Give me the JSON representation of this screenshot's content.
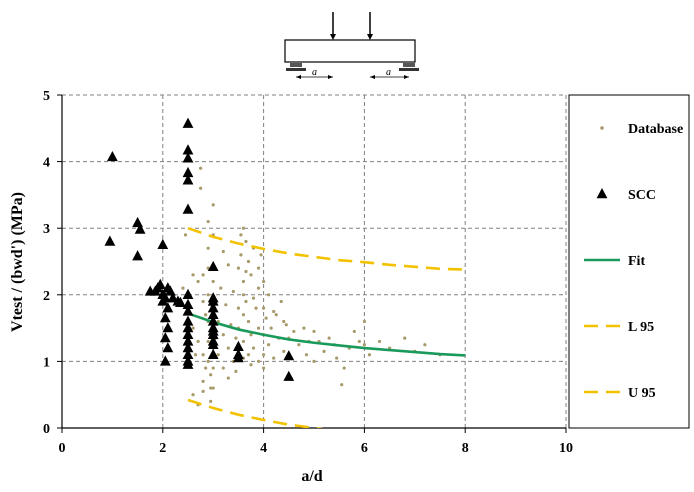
{
  "chart_data": {
    "type": "scatter",
    "xlabel": "a/d",
    "ylabel": "Vtest / (bwd')   (MPa)",
    "xlim": [
      0,
      10
    ],
    "ylim": [
      0,
      5
    ],
    "x_ticks": [
      "0",
      "2",
      "4",
      "6",
      "8",
      "10"
    ],
    "y_ticks": [
      "0",
      "1",
      "2",
      "3",
      "4",
      "5"
    ],
    "grid": true,
    "legend_position": "right",
    "legend": [
      "Database",
      "SCC",
      "Fit",
      "L 95",
      "U 95"
    ],
    "inset_diagram": {
      "span_label_left": "a",
      "span_label_right": "a"
    },
    "colors": {
      "database": "#a89a6a",
      "scc": "#000000",
      "fit": "#1a9a5a",
      "bounds": "#f2c200",
      "grid": "#808080"
    },
    "series": [
      {
        "name": "SCC",
        "marker": "triangle",
        "points": [
          [
            1.0,
            4.07
          ],
          [
            0.95,
            2.8
          ],
          [
            1.5,
            3.08
          ],
          [
            1.55,
            2.98
          ],
          [
            1.5,
            2.58
          ],
          [
            2.0,
            2.75
          ],
          [
            1.75,
            2.05
          ],
          [
            1.85,
            2.05
          ],
          [
            1.9,
            2.1
          ],
          [
            1.95,
            2.15
          ],
          [
            2.0,
            2.0
          ],
          [
            2.05,
            1.95
          ],
          [
            2.1,
            2.1
          ],
          [
            2.15,
            2.05
          ],
          [
            2.0,
            1.9
          ],
          [
            2.1,
            1.8
          ],
          [
            2.05,
            1.65
          ],
          [
            2.1,
            1.5
          ],
          [
            2.05,
            1.35
          ],
          [
            2.1,
            1.2
          ],
          [
            2.05,
            1.0
          ],
          [
            2.2,
            1.95
          ],
          [
            2.3,
            1.9
          ],
          [
            2.35,
            1.88
          ],
          [
            2.5,
            4.57
          ],
          [
            2.5,
            4.17
          ],
          [
            2.5,
            4.05
          ],
          [
            2.5,
            3.83
          ],
          [
            2.5,
            3.72
          ],
          [
            2.5,
            3.28
          ],
          [
            2.5,
            2.0
          ],
          [
            2.5,
            1.85
          ],
          [
            2.5,
            1.75
          ],
          [
            2.5,
            1.6
          ],
          [
            2.5,
            1.5
          ],
          [
            2.5,
            1.4
          ],
          [
            2.5,
            1.3
          ],
          [
            2.5,
            1.2
          ],
          [
            2.5,
            1.1
          ],
          [
            2.5,
            1.0
          ],
          [
            2.5,
            0.95
          ],
          [
            3.0,
            2.42
          ],
          [
            3.0,
            1.95
          ],
          [
            3.0,
            1.9
          ],
          [
            3.0,
            1.8
          ],
          [
            3.0,
            1.7
          ],
          [
            3.0,
            1.6
          ],
          [
            3.0,
            1.5
          ],
          [
            3.0,
            1.45
          ],
          [
            3.0,
            1.4
          ],
          [
            3.0,
            1.3
          ],
          [
            3.0,
            1.25
          ],
          [
            3.0,
            1.1
          ],
          [
            3.5,
            1.22
          ],
          [
            3.5,
            1.1
          ],
          [
            3.5,
            1.05
          ],
          [
            4.5,
            1.08
          ],
          [
            4.5,
            0.77
          ]
        ]
      },
      {
        "name": "Fit",
        "line": "solid",
        "points": [
          [
            2.5,
            1.72
          ],
          [
            3.0,
            1.59
          ],
          [
            3.5,
            1.48
          ],
          [
            4.0,
            1.4
          ],
          [
            4.5,
            1.33
          ],
          [
            5.0,
            1.28
          ],
          [
            5.5,
            1.24
          ],
          [
            6.0,
            1.2
          ],
          [
            6.5,
            1.17
          ],
          [
            7.0,
            1.14
          ],
          [
            7.5,
            1.11
          ],
          [
            8.0,
            1.09
          ]
        ]
      },
      {
        "name": "L 95",
        "line": "dashed",
        "points": [
          [
            2.5,
            3.0
          ],
          [
            3.0,
            2.87
          ],
          [
            3.5,
            2.77
          ],
          [
            4.0,
            2.69
          ],
          [
            4.5,
            2.62
          ],
          [
            5.0,
            2.57
          ],
          [
            5.5,
            2.52
          ],
          [
            6.0,
            2.49
          ],
          [
            6.5,
            2.45
          ],
          [
            7.0,
            2.42
          ],
          [
            7.5,
            2.39
          ],
          [
            8.0,
            2.38
          ]
        ]
      },
      {
        "name": "U 95",
        "line": "dashed",
        "points": [
          [
            2.5,
            0.42
          ],
          [
            3.0,
            0.3
          ],
          [
            3.5,
            0.2
          ],
          [
            4.0,
            0.12
          ],
          [
            4.5,
            0.05
          ],
          [
            5.0,
            0.0
          ],
          [
            5.3,
            -0.03
          ]
        ]
      },
      {
        "name": "Database",
        "marker": "dot",
        "points": [
          [
            2.4,
            2.1
          ],
          [
            2.45,
            2.9
          ],
          [
            2.6,
            2.3
          ],
          [
            2.6,
            1.5
          ],
          [
            2.7,
            2.2
          ],
          [
            2.7,
            1.3
          ],
          [
            2.75,
            3.9
          ],
          [
            2.75,
            3.6
          ],
          [
            2.8,
            2.3
          ],
          [
            2.8,
            1.9
          ],
          [
            2.8,
            1.1
          ],
          [
            2.85,
            1.7
          ],
          [
            2.9,
            3.1
          ],
          [
            2.9,
            2.7
          ],
          [
            2.9,
            2.4
          ],
          [
            2.9,
            2.0
          ],
          [
            2.9,
            1.6
          ],
          [
            2.9,
            1.3
          ],
          [
            2.9,
            1.0
          ],
          [
            2.95,
            0.8
          ],
          [
            2.95,
            0.6
          ],
          [
            2.95,
            0.4
          ],
          [
            2.85,
            0.9
          ],
          [
            2.8,
            0.7
          ],
          [
            3.0,
            3.35
          ],
          [
            3.0,
            2.9
          ],
          [
            3.0,
            2.2
          ],
          [
            3.0,
            1.2
          ],
          [
            3.0,
            0.9
          ],
          [
            3.0,
            0.6
          ],
          [
            3.1,
            1.6
          ],
          [
            3.1,
            1.1
          ],
          [
            3.15,
            2.1
          ],
          [
            3.2,
            1.4
          ],
          [
            3.2,
            0.9
          ],
          [
            3.25,
            1.85
          ],
          [
            3.3,
            1.2
          ],
          [
            3.3,
            2.45
          ],
          [
            3.35,
            1.55
          ],
          [
            3.4,
            2.05
          ],
          [
            3.4,
            1.0
          ],
          [
            3.45,
            1.35
          ],
          [
            3.5,
            2.4
          ],
          [
            3.5,
            1.8
          ],
          [
            3.5,
            1.5
          ],
          [
            3.55,
            2.9
          ],
          [
            3.55,
            2.6
          ],
          [
            3.6,
            3.0
          ],
          [
            3.6,
            2.2
          ],
          [
            3.6,
            2.0
          ],
          [
            3.6,
            1.7
          ],
          [
            3.6,
            1.3
          ],
          [
            3.6,
            1.05
          ],
          [
            3.65,
            2.8
          ],
          [
            3.65,
            1.9
          ],
          [
            3.7,
            2.5
          ],
          [
            3.7,
            1.6
          ],
          [
            3.7,
            1.1
          ],
          [
            3.75,
            2.3
          ],
          [
            3.75,
            1.4
          ],
          [
            3.8,
            2.7
          ],
          [
            3.8,
            1.95
          ],
          [
            3.8,
            1.2
          ],
          [
            3.85,
            1.8
          ],
          [
            3.9,
            2.1
          ],
          [
            3.9,
            1.5
          ],
          [
            3.9,
            1.0
          ],
          [
            3.95,
            2.6
          ],
          [
            4.0,
            2.2
          ],
          [
            4.0,
            1.8
          ],
          [
            4.0,
            1.4
          ],
          [
            4.0,
            1.1
          ],
          [
            4.0,
            0.9
          ],
          [
            4.05,
            1.65
          ],
          [
            4.1,
            2.0
          ],
          [
            4.1,
            1.25
          ],
          [
            4.15,
            1.5
          ],
          [
            4.2,
            1.05
          ],
          [
            4.25,
            1.7
          ],
          [
            4.3,
            1.35
          ],
          [
            4.35,
            1.9
          ],
          [
            4.4,
            1.15
          ],
          [
            4.45,
            1.55
          ],
          [
            4.5,
            1.35
          ],
          [
            4.55,
            1.05
          ],
          [
            4.6,
            1.45
          ],
          [
            4.7,
            1.25
          ],
          [
            4.8,
            1.5
          ],
          [
            4.85,
            1.1
          ],
          [
            4.9,
            1.3
          ],
          [
            5.0,
            1.45
          ],
          [
            5.0,
            1.0
          ],
          [
            5.1,
            1.3
          ],
          [
            5.2,
            1.15
          ],
          [
            5.3,
            1.35
          ],
          [
            5.4,
            1.25
          ],
          [
            5.45,
            1.05
          ],
          [
            5.55,
            0.65
          ],
          [
            5.6,
            0.9
          ],
          [
            5.7,
            1.2
          ],
          [
            5.8,
            1.45
          ],
          [
            5.9,
            1.3
          ],
          [
            6.0,
            1.6
          ],
          [
            6.0,
            1.25
          ],
          [
            6.1,
            1.1
          ],
          [
            6.3,
            1.3
          ],
          [
            6.5,
            1.2
          ],
          [
            6.8,
            1.35
          ],
          [
            7.0,
            1.15
          ],
          [
            7.2,
            1.25
          ],
          [
            7.5,
            1.1
          ],
          [
            2.95,
            1.85
          ],
          [
            3.05,
            1.35
          ],
          [
            3.2,
            2.65
          ],
          [
            3.45,
            0.85
          ],
          [
            3.5,
            1.15
          ],
          [
            3.75,
            0.95
          ],
          [
            4.2,
            1.75
          ],
          [
            4.4,
            1.6
          ],
          [
            3.3,
            0.75
          ],
          [
            3.9,
            2.4
          ],
          [
            3.65,
            2.35
          ],
          [
            2.6,
            0.5
          ],
          [
            2.7,
            0.35
          ],
          [
            2.8,
            0.55
          ],
          [
            2.65,
            1.1
          ]
        ]
      }
    ]
  }
}
